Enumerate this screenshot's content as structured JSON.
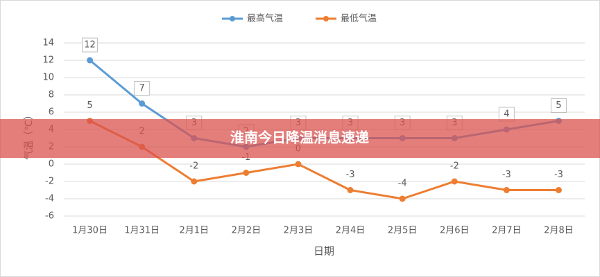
{
  "chart_data": {
    "type": "line",
    "categories": [
      "1月30日",
      "1月31日",
      "2月1日",
      "2月2日",
      "2月3日",
      "2月4日",
      "2月5日",
      "2月6日",
      "2月7日",
      "2月8日"
    ],
    "series": [
      {
        "name": "最高气温",
        "color": "#5b9bd5",
        "values": [
          12,
          7,
          3,
          2,
          3,
          3,
          3,
          3,
          4,
          5
        ]
      },
      {
        "name": "最低气温",
        "color": "#ed7d31",
        "values": [
          5,
          2,
          -2,
          -1,
          0,
          -3,
          -4,
          -2,
          -3,
          -3
        ]
      }
    ],
    "ylim": [
      -6,
      14
    ],
    "yticks": [
      -6,
      -4,
      -2,
      0,
      2,
      4,
      6,
      8,
      10,
      12,
      14
    ],
    "y_label": "气温（℃）",
    "x_label": "日期",
    "grid": true,
    "legend": "top"
  },
  "banner": {
    "title": "淮南今日降温消息速递",
    "color": "#d9534f"
  }
}
